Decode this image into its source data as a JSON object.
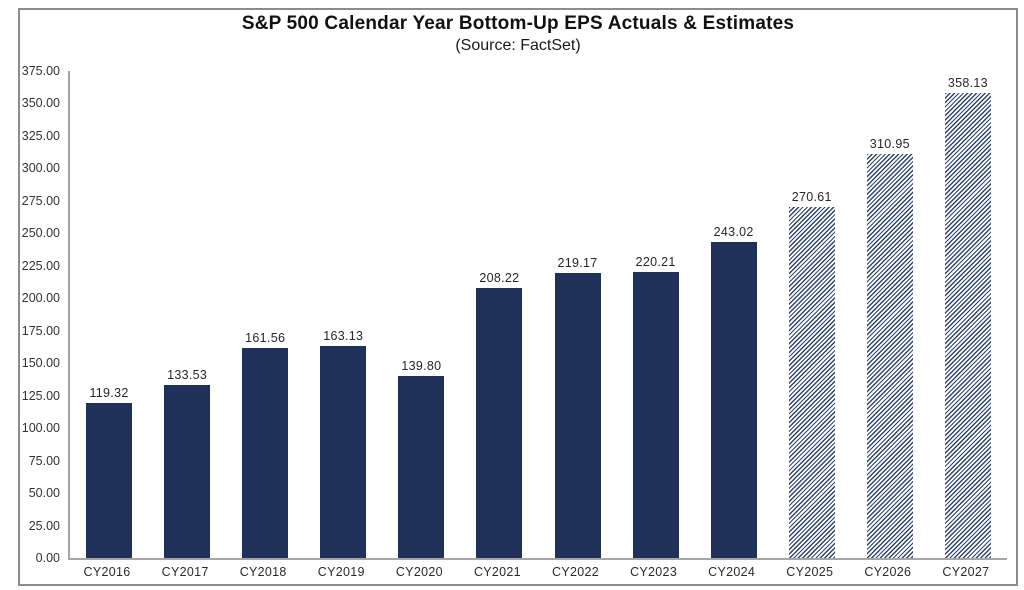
{
  "chart_data": {
    "type": "bar",
    "title": "S&P 500 Calendar Year Bottom-Up EPS Actuals & Estimates",
    "subtitle": "(Source: FactSet)",
    "categories": [
      "CY2016",
      "CY2017",
      "CY2018",
      "CY2019",
      "CY2020",
      "CY2021",
      "CY2022",
      "CY2023",
      "CY2024",
      "CY2025",
      "CY2026",
      "CY2027"
    ],
    "values": [
      119.32,
      133.53,
      161.56,
      163.13,
      139.8,
      208.22,
      219.17,
      220.21,
      243.02,
      270.61,
      310.95,
      358.13
    ],
    "value_labels": [
      "119.32",
      "133.53",
      "161.56",
      "163.13",
      "139.80",
      "208.22",
      "219.17",
      "220.21",
      "243.02",
      "270.61",
      "310.95",
      "358.13"
    ],
    "estimated": [
      false,
      false,
      false,
      false,
      false,
      false,
      false,
      false,
      false,
      true,
      true,
      true
    ],
    "xlabel": "",
    "ylabel": "",
    "ylim": [
      0,
      375
    ],
    "ytick_step": 25,
    "ytick_decimals": 2,
    "grid": false,
    "legend_position": "none",
    "colors": {
      "actual_bar": "#1f3158",
      "estimate_stripe": "#2e4471",
      "estimate_background": "#ffffff",
      "axis_line": "#a6a6a6",
      "frame_border": "#8c8c8c",
      "tick_label": "#333333",
      "value_label": "#262626",
      "title": "#111111"
    }
  }
}
